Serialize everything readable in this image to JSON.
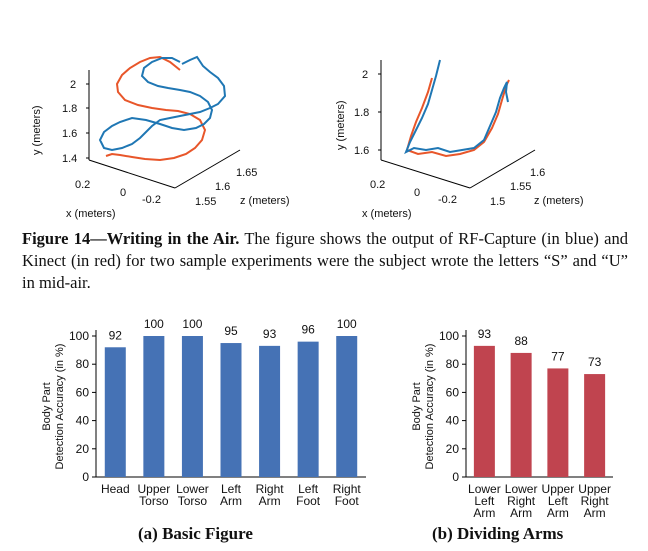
{
  "figure14": {
    "label": "Figure 14—Writing in the Air.",
    "text": "The figure shows the output of RF-Capture (in blue) and Kinect (in red) for two sample experiments were the subject wrote the letters “S” and “U” in mid-air."
  },
  "plot3d_s": {
    "y_label": "y (meters)",
    "x_label": "x (meters)",
    "z_label": "z (meters)",
    "y_ticks": [
      "2",
      "1.8",
      "1.6",
      "1.4"
    ],
    "x_ticks": [
      "0.2",
      "0",
      "-0.2"
    ],
    "z_ticks": [
      "1.55",
      "1.6",
      "1.65"
    ]
  },
  "plot3d_u": {
    "y_label": "y (meters)",
    "x_label": "x (meters)",
    "z_label": "z (meters)",
    "y_ticks": [
      "2",
      "1.8",
      "1.6"
    ],
    "x_ticks": [
      "0.2",
      "0",
      "-0.2"
    ],
    "z_ticks": [
      "1.5",
      "1.55",
      "1.6"
    ]
  },
  "colors": {
    "rf_capture": "#1f77b4",
    "kinect": "#e8562a",
    "bar_blue": "#4572b5",
    "bar_red": "#c0444f"
  },
  "chart_data": [
    {
      "type": "bar",
      "caption": "(a) Basic Figure",
      "ylabel": "Body Part\nDetection Accuracy (in %)",
      "categories": [
        "Head",
        "Upper\nTorso",
        "Lower\nTorso",
        "Left\nArm",
        "Right\nArm",
        "Left\nFoot",
        "Right\nFoot"
      ],
      "values": [
        92,
        100,
        100,
        95,
        93,
        96,
        100
      ],
      "ylim": [
        0,
        100
      ],
      "yticks": [
        0,
        20,
        40,
        60,
        80,
        100
      ]
    },
    {
      "type": "bar",
      "caption": "(b) Dividing Arms",
      "ylabel": "Body Part\nDetection Accuracy (in %)",
      "categories": [
        "Lower\nLeft\nArm",
        "Lower\nRight\nArm",
        "Upper\nLeft\nArm",
        "Upper\nRight\nArm"
      ],
      "values": [
        93,
        88,
        77,
        73
      ],
      "ylim": [
        0,
        100
      ],
      "yticks": [
        0,
        20,
        40,
        60,
        80,
        100
      ]
    }
  ]
}
